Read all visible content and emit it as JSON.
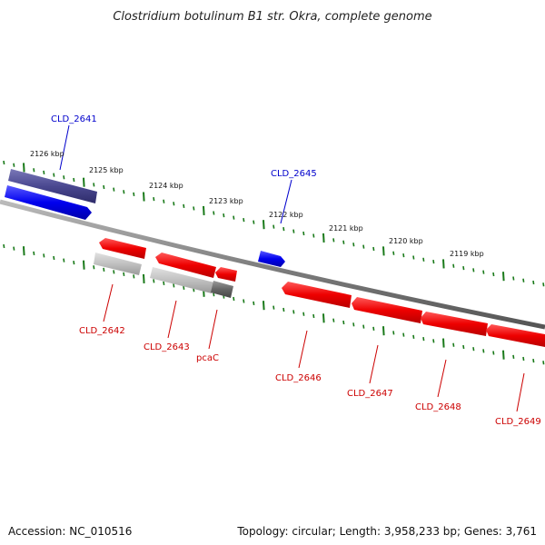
{
  "title": "Clostridium botulinum B1 str. Okra, complete genome",
  "footer": {
    "accession": "Accession: NC_010516",
    "summary": "Topology: circular; Length: 3,958,233 bp; Genes: 3,761"
  },
  "colors": {
    "forward_strand": "#0000ee",
    "forward_label": "#0000cc",
    "reverse_strand": "#ee0000",
    "reverse_label": "#cc0000",
    "backbone": "#808080",
    "tick": "#1a7a1a"
  },
  "scale_labels": [
    "2126 kbp",
    "2125 kbp",
    "2124 kbp",
    "2123 kbp",
    "2122 kbp",
    "2121 kbp",
    "2120 kbp",
    "2119 kbp"
  ],
  "genes": [
    {
      "name": "CLD_2641",
      "strand": "forward"
    },
    {
      "name": "CLD_2645",
      "strand": "forward"
    },
    {
      "name": "CLD_2642",
      "strand": "reverse"
    },
    {
      "name": "CLD_2643",
      "strand": "reverse"
    },
    {
      "name": "pcaC",
      "strand": "reverse"
    },
    {
      "name": "CLD_2646",
      "strand": "reverse"
    },
    {
      "name": "CLD_2647",
      "strand": "reverse"
    },
    {
      "name": "CLD_2648",
      "strand": "reverse"
    },
    {
      "name": "CLD_2649",
      "strand": "reverse"
    }
  ]
}
